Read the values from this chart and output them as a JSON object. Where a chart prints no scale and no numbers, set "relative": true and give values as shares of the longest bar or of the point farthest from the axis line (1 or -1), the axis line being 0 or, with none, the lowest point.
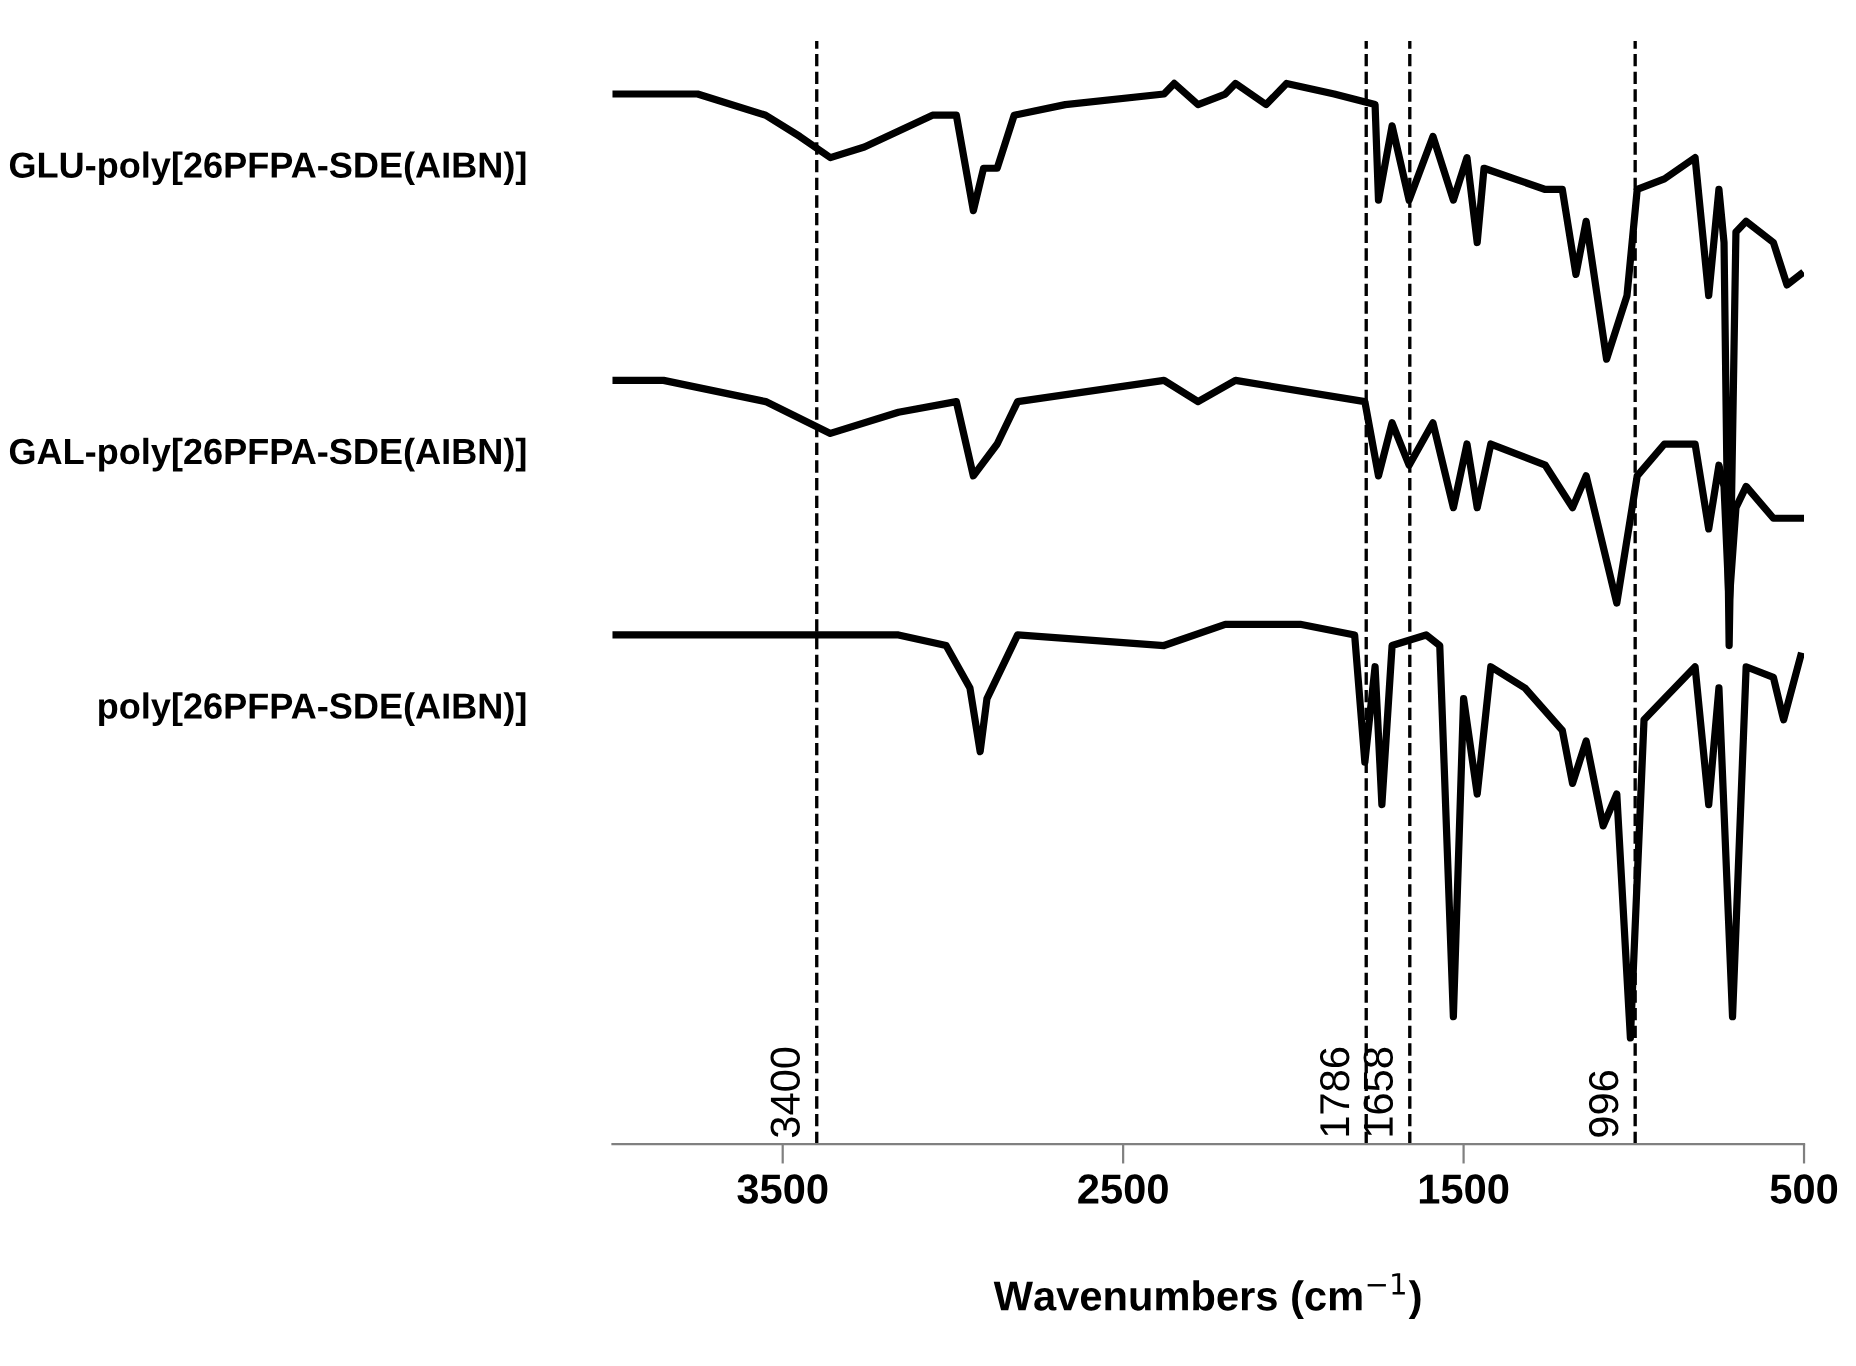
{
  "chart_data": {
    "type": "line",
    "relative": true,
    "xlabel": "Wavenumbers (cm$^{−1}$)",
    "xlim": [
      4000,
      500
    ],
    "xticks": [
      3500,
      2500,
      1500,
      500
    ],
    "grid": false,
    "legend": false,
    "tick_labels": "x",
    "line_style": "solid",
    "marker": "none",
    "series": [
      {
        "name": "GLU-poly[26PFPA-SDE(AIBN)]",
        "color": "#000000",
        "x": [
          4000,
          3750,
          3550,
          3450,
          3360,
          3260,
          3060,
          3020,
          2990,
          2940,
          2910,
          2870,
          2820,
          2670,
          2380,
          2350,
          2280,
          2200,
          2170,
          2080,
          2020,
          1880,
          1760,
          1750,
          1710,
          1660,
          1590,
          1530,
          1490,
          1460,
          1440,
          1350,
          1260,
          1210,
          1170,
          1140,
          1080,
          1020,
          990,
          910,
          820,
          780,
          750,
          735,
          720,
          700,
          670,
          590,
          550,
          510
        ],
        "values": [
          0.99,
          0.99,
          0.97,
          0.95,
          0.93,
          0.94,
          0.97,
          0.97,
          0.97,
          0.88,
          0.92,
          0.92,
          0.97,
          0.98,
          0.99,
          1.0,
          0.98,
          0.99,
          1.0,
          0.98,
          1.0,
          0.99,
          0.98,
          0.89,
          0.96,
          0.89,
          0.95,
          0.89,
          0.93,
          0.85,
          0.92,
          0.91,
          0.9,
          0.9,
          0.82,
          0.87,
          0.74,
          0.8,
          0.9,
          0.91,
          0.93,
          0.8,
          0.9,
          0.85,
          0.47,
          0.86,
          0.87,
          0.85,
          0.81,
          0.82
        ]
      },
      {
        "name": "GAL-poly[26PFPA-SDE(AIBN)]",
        "color": "#000000",
        "x": [
          4000,
          3850,
          3550,
          3360,
          3160,
          2990,
          2940,
          2870,
          2810,
          2380,
          2280,
          2170,
          1790,
          1750,
          1710,
          1660,
          1590,
          1530,
          1490,
          1460,
          1420,
          1260,
          1180,
          1140,
          1050,
          990,
          910,
          820,
          780,
          750,
          735,
          720,
          700,
          670,
          590,
          510
        ],
        "values": [
          0.72,
          0.72,
          0.7,
          0.67,
          0.69,
          0.7,
          0.63,
          0.66,
          0.7,
          0.72,
          0.7,
          0.72,
          0.7,
          0.63,
          0.68,
          0.64,
          0.68,
          0.6,
          0.66,
          0.6,
          0.66,
          0.64,
          0.6,
          0.63,
          0.51,
          0.63,
          0.66,
          0.66,
          0.58,
          0.64,
          0.62,
          0.51,
          0.6,
          0.62,
          0.59,
          0.59
        ]
      },
      {
        "name": "poly[26PFPA-SDE(AIBN)]",
        "color": "#000000",
        "x": [
          4000,
          3750,
          3160,
          3020,
          2950,
          2920,
          2900,
          2810,
          2380,
          2200,
          1980,
          1820,
          1790,
          1760,
          1740,
          1710,
          1610,
          1570,
          1530,
          1500,
          1460,
          1420,
          1320,
          1210,
          1180,
          1140,
          1090,
          1050,
          1010,
          970,
          910,
          820,
          780,
          750,
          710,
          670,
          590,
          560,
          510
        ],
        "values": [
          0.48,
          0.48,
          0.48,
          0.47,
          0.43,
          0.37,
          0.42,
          0.48,
          0.47,
          0.49,
          0.49,
          0.48,
          0.36,
          0.45,
          0.32,
          0.47,
          0.48,
          0.47,
          0.12,
          0.42,
          0.33,
          0.45,
          0.43,
          0.39,
          0.34,
          0.38,
          0.3,
          0.33,
          0.1,
          0.4,
          0.42,
          0.45,
          0.32,
          0.43,
          0.12,
          0.45,
          0.44,
          0.4,
          0.46
        ]
      }
    ],
    "ref_lines": [
      {
        "axis": "x",
        "value": 3400,
        "label": "3400",
        "color": "#000000",
        "line_style": "dashed"
      },
      {
        "axis": "x",
        "value": 1786,
        "label": "1786",
        "color": "#000000",
        "line_style": "dashed"
      },
      {
        "axis": "x",
        "value": 1658,
        "label": "1658",
        "color": "#000000",
        "line_style": "dashed"
      },
      {
        "axis": "x",
        "value": 996,
        "label": "996",
        "color": "#000000",
        "line_style": "dashed"
      }
    ]
  }
}
